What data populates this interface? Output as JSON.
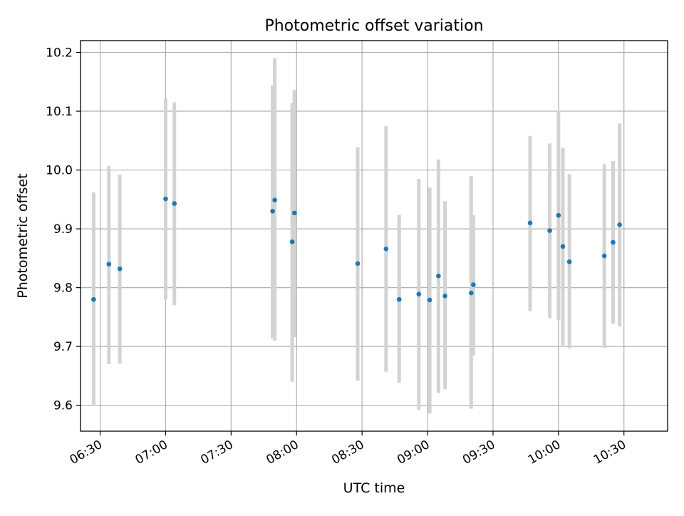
{
  "chart_data": {
    "type": "scatter",
    "title": "Photometric offset variation",
    "xlabel": "UTC time",
    "ylabel": "Photometric offset",
    "xlim": [
      "06:21",
      "10:50"
    ],
    "ylim": [
      9.556,
      10.22
    ],
    "grid": true,
    "x_ticks": [
      "06:30",
      "07:00",
      "07:30",
      "08:00",
      "08:30",
      "09:00",
      "09:30",
      "10:00",
      "10:30"
    ],
    "y_ticks": [
      "9.6",
      "9.7",
      "9.8",
      "9.9",
      "10.0",
      "10.1",
      "10.2"
    ],
    "series": [
      {
        "x": [
          "06:27",
          "06:34",
          "06:39",
          "07:00",
          "07:04",
          "07:49",
          "07:50",
          "07:58",
          "07:59",
          "08:28",
          "08:41",
          "08:47",
          "08:56",
          "09:01",
          "09:05",
          "09:08",
          "09:20",
          "09:21",
          "09:47",
          "09:56",
          "10:00",
          "10:02",
          "10:05",
          "10:21",
          "10:25",
          "10:28"
        ],
        "y": [
          9.78,
          9.84,
          9.832,
          9.951,
          9.943,
          9.93,
          9.949,
          9.878,
          9.927,
          9.841,
          9.866,
          9.78,
          9.789,
          9.779,
          9.82,
          9.786,
          9.791,
          9.805,
          9.91,
          9.897,
          9.923,
          9.87,
          9.844,
          9.854,
          9.877,
          9.907
        ],
        "yerr_low": [
          9.6,
          9.67,
          9.671,
          9.78,
          9.77,
          9.714,
          9.71,
          9.64,
          9.716,
          9.642,
          9.657,
          9.638,
          9.592,
          9.586,
          9.621,
          9.627,
          9.594,
          9.685,
          9.76,
          9.748,
          9.745,
          9.702,
          9.697,
          9.698,
          9.739,
          9.734
        ],
        "yerr_high": [
          9.962,
          10.007,
          9.992,
          10.122,
          10.115,
          10.144,
          10.19,
          10.114,
          10.136,
          10.039,
          10.075,
          9.924,
          9.985,
          9.97,
          10.018,
          9.947,
          9.99,
          9.923,
          10.058,
          10.045,
          10.101,
          10.038,
          9.993,
          10.01,
          10.015,
          10.079
        ]
      }
    ],
    "colors": {
      "points": "#1f77b4",
      "errorbars": "#d3d3d3",
      "grid": "#b0b0b0",
      "axes": "#000000"
    }
  }
}
